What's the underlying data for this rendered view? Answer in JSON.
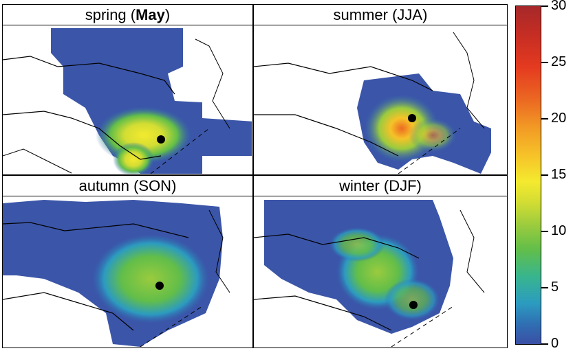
{
  "panels": [
    {
      "id": "spring",
      "title_prefix": "spring (",
      "title_bold": "May",
      "title_suffix": ")"
    },
    {
      "id": "summer",
      "title": "summer (JJA)"
    },
    {
      "id": "autumn",
      "title": "autumn (SON)"
    },
    {
      "id": "winter",
      "title": "winter (DJF)"
    }
  ],
  "colorbar": {
    "ticks": [
      "0",
      "5",
      "10",
      "15",
      "20",
      "25",
      "30"
    ],
    "range": [
      0,
      30
    ],
    "colors": [
      "#3a4fa5",
      "#2c9bc0",
      "#62be49",
      "#f4ea2f",
      "#f29a25",
      "#e43a20",
      "#a6282a"
    ]
  }
}
